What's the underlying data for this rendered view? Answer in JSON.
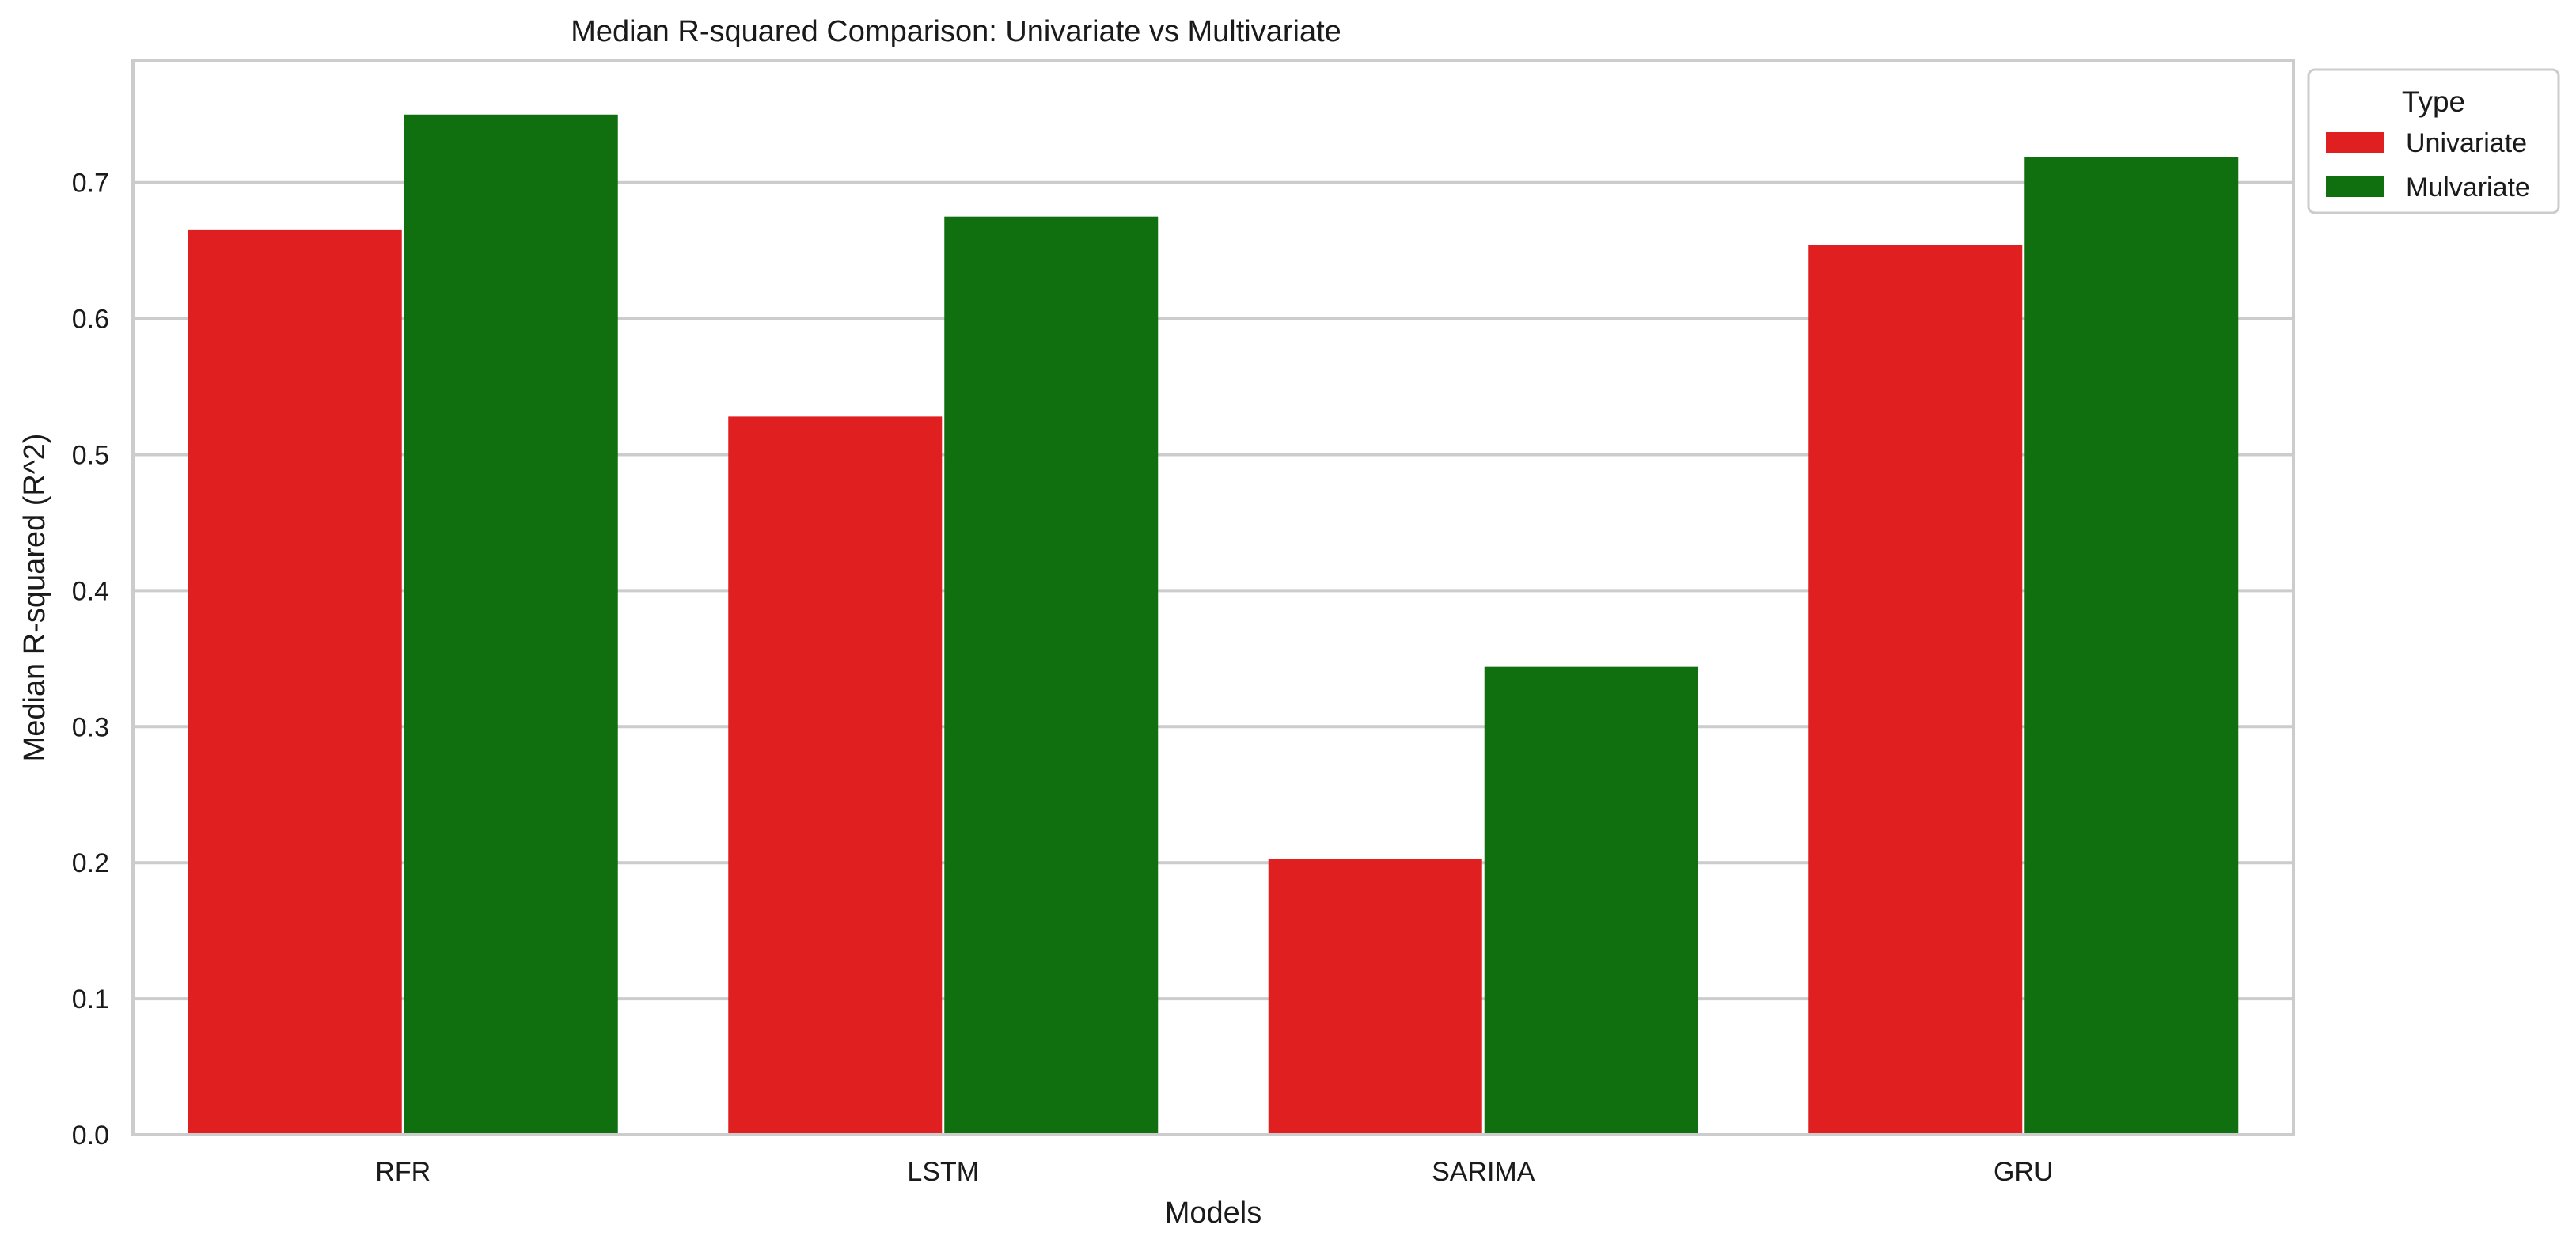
{
  "chart_data": {
    "type": "bar",
    "title": "Median R-squared Comparison: Univariate vs Multivariate",
    "xlabel": "Models",
    "ylabel": "Median R-squared (R^2)",
    "categories": [
      "RFR",
      "LSTM",
      "SARIMA",
      "GRU"
    ],
    "series": [
      {
        "name": "Univariate",
        "color": "#e02020",
        "values": [
          0.665,
          0.528,
          0.203,
          0.654
        ]
      },
      {
        "name": "Mulvariate",
        "color": "#107010",
        "values": [
          0.75,
          0.675,
          0.344,
          0.719
        ]
      }
    ],
    "ylim": [
      0,
      0.79
    ],
    "yticks": [
      0.0,
      0.1,
      0.2,
      0.3,
      0.4,
      0.5,
      0.6,
      0.7
    ],
    "grid": "horizontal",
    "legend": {
      "title": "Type",
      "placement": "outside top-right"
    }
  }
}
